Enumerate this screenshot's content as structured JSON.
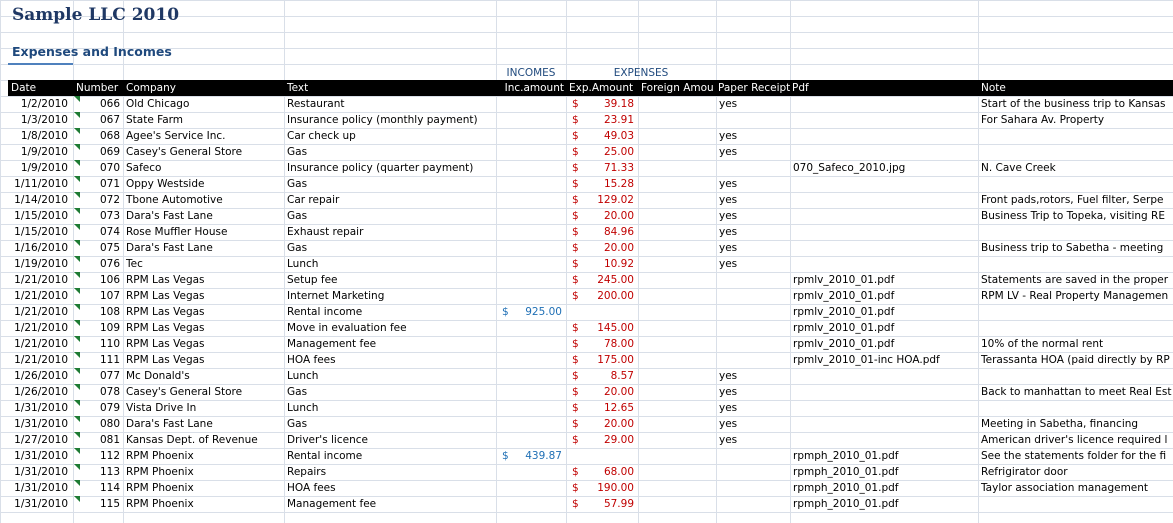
{
  "sheet": {
    "title": "Sample LLC  2010",
    "subtitle": "Expenses and Incomes",
    "group_incomes": "INCOMES",
    "group_expenses": "EXPENSES",
    "currency_symbol": "$"
  },
  "columns": [
    "Date",
    "Number",
    "Company",
    "Text",
    "Inc.amount",
    "Exp.Amount",
    "Foreign Amou",
    "Paper Receipt",
    "Pdf",
    "Note"
  ],
  "rows": [
    {
      "date": "1/2/2010",
      "number": "066",
      "company": "Old Chicago",
      "text": "Restaurant",
      "inc": "",
      "exp": "39.18",
      "foreign": "",
      "receipt": "yes",
      "pdf": "",
      "note": "Start of the business trip to Kansas"
    },
    {
      "date": "1/3/2010",
      "number": "067",
      "company": "State Farm",
      "text": "Insurance policy (monthly payment)",
      "inc": "",
      "exp": "23.91",
      "foreign": "",
      "receipt": "",
      "pdf": "",
      "note": "For Sahara Av. Property"
    },
    {
      "date": "1/8/2010",
      "number": "068",
      "company": "Agee's Service Inc.",
      "text": "Car check up",
      "inc": "",
      "exp": "49.03",
      "foreign": "",
      "receipt": "yes",
      "pdf": "",
      "note": ""
    },
    {
      "date": "1/9/2010",
      "number": "069",
      "company": "Casey's General Store",
      "text": "Gas",
      "inc": "",
      "exp": "25.00",
      "foreign": "",
      "receipt": "yes",
      "pdf": "",
      "note": ""
    },
    {
      "date": "1/9/2010",
      "number": "070",
      "company": "Safeco",
      "text": "Insurance policy (quarter payment)",
      "inc": "",
      "exp": "71.33",
      "foreign": "",
      "receipt": "",
      "pdf": "070_Safeco_2010.jpg",
      "note": "N. Cave Creek"
    },
    {
      "date": "1/11/2010",
      "number": "071",
      "company": "Oppy Westside",
      "text": "Gas",
      "inc": "",
      "exp": "15.28",
      "foreign": "",
      "receipt": "yes",
      "pdf": "",
      "note": ""
    },
    {
      "date": "1/14/2010",
      "number": "072",
      "company": "Tbone Automotive",
      "text": "Car repair",
      "inc": "",
      "exp": "129.02",
      "foreign": "",
      "receipt": "yes",
      "pdf": "",
      "note": "Front pads,rotors, Fuel filter, Serpe"
    },
    {
      "date": "1/15/2010",
      "number": "073",
      "company": "Dara's Fast Lane",
      "text": "Gas",
      "inc": "",
      "exp": "20.00",
      "foreign": "",
      "receipt": "yes",
      "pdf": "",
      "note": "Business Trip to Topeka, visiting RE"
    },
    {
      "date": "1/15/2010",
      "number": "074",
      "company": "Rose Muffler House",
      "text": "Exhaust repair",
      "inc": "",
      "exp": "84.96",
      "foreign": "",
      "receipt": "yes",
      "pdf": "",
      "note": ""
    },
    {
      "date": "1/16/2010",
      "number": "075",
      "company": "Dara's Fast Lane",
      "text": "Gas",
      "inc": "",
      "exp": "20.00",
      "foreign": "",
      "receipt": "yes",
      "pdf": "",
      "note": "Business trip to Sabetha - meeting"
    },
    {
      "date": "1/19/2010",
      "number": "076",
      "company": "Tec",
      "text": "Lunch",
      "inc": "",
      "exp": "10.92",
      "foreign": "",
      "receipt": "yes",
      "pdf": "",
      "note": ""
    },
    {
      "date": "1/21/2010",
      "number": "106",
      "company": "RPM Las Vegas",
      "text": "Setup fee",
      "inc": "",
      "exp": "245.00",
      "foreign": "",
      "receipt": "",
      "pdf": "rpmlv_2010_01.pdf",
      "note": "Statements are saved in the proper"
    },
    {
      "date": "1/21/2010",
      "number": "107",
      "company": "RPM Las Vegas",
      "text": "Internet Marketing",
      "inc": "",
      "exp": "200.00",
      "foreign": "",
      "receipt": "",
      "pdf": "rpmlv_2010_01.pdf",
      "note": "RPM LV - Real Property Managemen"
    },
    {
      "date": "1/21/2010",
      "number": "108",
      "company": "RPM Las Vegas",
      "text": "Rental income",
      "inc": "925.00",
      "exp": "",
      "foreign": "",
      "receipt": "",
      "pdf": "rpmlv_2010_01.pdf",
      "note": ""
    },
    {
      "date": "1/21/2010",
      "number": "109",
      "company": "RPM Las Vegas",
      "text": "Move in evaluation fee",
      "inc": "",
      "exp": "145.00",
      "foreign": "",
      "receipt": "",
      "pdf": "rpmlv_2010_01.pdf",
      "note": ""
    },
    {
      "date": "1/21/2010",
      "number": "110",
      "company": "RPM Las Vegas",
      "text": "Management fee",
      "inc": "",
      "exp": "78.00",
      "foreign": "",
      "receipt": "",
      "pdf": "rpmlv_2010_01.pdf",
      "note": "10% of the normal rent"
    },
    {
      "date": "1/21/2010",
      "number": "111",
      "company": "RPM Las Vegas",
      "text": "HOA fees",
      "inc": "",
      "exp": "175.00",
      "foreign": "",
      "receipt": "",
      "pdf": "rpmlv_2010_01-inc HOA.pdf",
      "note": "Terassanta HOA (paid directly by RP"
    },
    {
      "date": "1/26/2010",
      "number": "077",
      "company": "Mc Donald's",
      "text": "Lunch",
      "inc": "",
      "exp": "8.57",
      "foreign": "",
      "receipt": "yes",
      "pdf": "",
      "note": ""
    },
    {
      "date": "1/26/2010",
      "number": "078",
      "company": "Casey's General Store",
      "text": "Gas",
      "inc": "",
      "exp": "20.00",
      "foreign": "",
      "receipt": "yes",
      "pdf": "",
      "note": "Back to manhattan to meet Real Est"
    },
    {
      "date": "1/31/2010",
      "number": "079",
      "company": "Vista Drive In",
      "text": "Lunch",
      "inc": "",
      "exp": "12.65",
      "foreign": "",
      "receipt": "yes",
      "pdf": "",
      "note": ""
    },
    {
      "date": "1/31/2010",
      "number": "080",
      "company": "Dara's Fast Lane",
      "text": "Gas",
      "inc": "",
      "exp": "20.00",
      "foreign": "",
      "receipt": "yes",
      "pdf": "",
      "note": "Meeting in Sabetha, financing"
    },
    {
      "date": "1/27/2010",
      "number": "081",
      "company": "Kansas Dept. of Revenue",
      "text": "Driver's licence",
      "inc": "",
      "exp": "29.00",
      "foreign": "",
      "receipt": "yes",
      "pdf": "",
      "note": "American driver's licence required l"
    },
    {
      "date": "1/31/2010",
      "number": "112",
      "company": "RPM Phoenix",
      "text": "Rental income",
      "inc": "439.87",
      "exp": "",
      "foreign": "",
      "receipt": "",
      "pdf": "rpmph_2010_01.pdf",
      "note": "See the statements folder for the fi"
    },
    {
      "date": "1/31/2010",
      "number": "113",
      "company": "RPM Phoenix",
      "text": "Repairs",
      "inc": "",
      "exp": "68.00",
      "foreign": "",
      "receipt": "",
      "pdf": "rpmph_2010_01.pdf",
      "note": "Refrigirator door"
    },
    {
      "date": "1/31/2010",
      "number": "114",
      "company": "RPM Phoenix",
      "text": "HOA fees",
      "inc": "",
      "exp": "190.00",
      "foreign": "",
      "receipt": "",
      "pdf": "rpmph_2010_01.pdf",
      "note": "Taylor association management"
    },
    {
      "date": "1/31/2010",
      "number": "115",
      "company": "RPM Phoenix",
      "text": "Management fee",
      "inc": "",
      "exp": "57.99",
      "foreign": "",
      "receipt": "",
      "pdf": "rpmph_2010_01.pdf",
      "note": ""
    }
  ]
}
